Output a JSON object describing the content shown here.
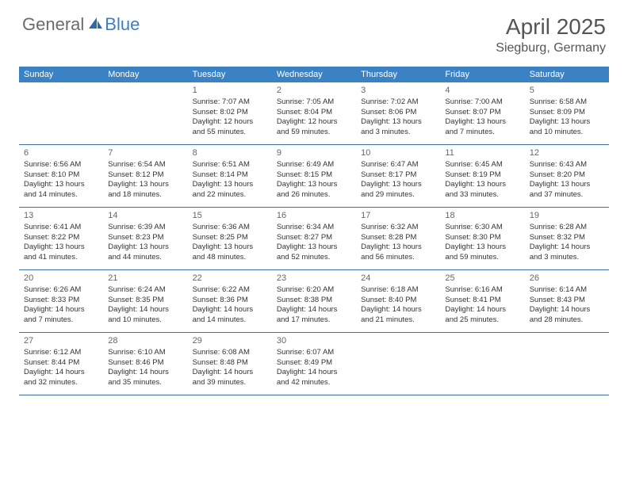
{
  "logo": {
    "general": "General",
    "blue": "Blue"
  },
  "title": "April 2025",
  "location": "Siegburg, Germany",
  "colors": {
    "header_bg": "#3b82c4",
    "header_text": "#ffffff",
    "border": "#3b6fa0",
    "body_text": "#333333",
    "daynum": "#666666",
    "logo_gray": "#6b6b6b",
    "logo_blue": "#3b7fc4",
    "title_color": "#555555",
    "background": "#ffffff"
  },
  "day_names": [
    "Sunday",
    "Monday",
    "Tuesday",
    "Wednesday",
    "Thursday",
    "Friday",
    "Saturday"
  ],
  "weeks": [
    [
      null,
      null,
      {
        "n": "1",
        "sr": "7:07 AM",
        "ss": "8:02 PM",
        "dl": "12 hours and 55 minutes."
      },
      {
        "n": "2",
        "sr": "7:05 AM",
        "ss": "8:04 PM",
        "dl": "12 hours and 59 minutes."
      },
      {
        "n": "3",
        "sr": "7:02 AM",
        "ss": "8:06 PM",
        "dl": "13 hours and 3 minutes."
      },
      {
        "n": "4",
        "sr": "7:00 AM",
        "ss": "8:07 PM",
        "dl": "13 hours and 7 minutes."
      },
      {
        "n": "5",
        "sr": "6:58 AM",
        "ss": "8:09 PM",
        "dl": "13 hours and 10 minutes."
      }
    ],
    [
      {
        "n": "6",
        "sr": "6:56 AM",
        "ss": "8:10 PM",
        "dl": "13 hours and 14 minutes."
      },
      {
        "n": "7",
        "sr": "6:54 AM",
        "ss": "8:12 PM",
        "dl": "13 hours and 18 minutes."
      },
      {
        "n": "8",
        "sr": "6:51 AM",
        "ss": "8:14 PM",
        "dl": "13 hours and 22 minutes."
      },
      {
        "n": "9",
        "sr": "6:49 AM",
        "ss": "8:15 PM",
        "dl": "13 hours and 26 minutes."
      },
      {
        "n": "10",
        "sr": "6:47 AM",
        "ss": "8:17 PM",
        "dl": "13 hours and 29 minutes."
      },
      {
        "n": "11",
        "sr": "6:45 AM",
        "ss": "8:19 PM",
        "dl": "13 hours and 33 minutes."
      },
      {
        "n": "12",
        "sr": "6:43 AM",
        "ss": "8:20 PM",
        "dl": "13 hours and 37 minutes."
      }
    ],
    [
      {
        "n": "13",
        "sr": "6:41 AM",
        "ss": "8:22 PM",
        "dl": "13 hours and 41 minutes."
      },
      {
        "n": "14",
        "sr": "6:39 AM",
        "ss": "8:23 PM",
        "dl": "13 hours and 44 minutes."
      },
      {
        "n": "15",
        "sr": "6:36 AM",
        "ss": "8:25 PM",
        "dl": "13 hours and 48 minutes."
      },
      {
        "n": "16",
        "sr": "6:34 AM",
        "ss": "8:27 PM",
        "dl": "13 hours and 52 minutes."
      },
      {
        "n": "17",
        "sr": "6:32 AM",
        "ss": "8:28 PM",
        "dl": "13 hours and 56 minutes."
      },
      {
        "n": "18",
        "sr": "6:30 AM",
        "ss": "8:30 PM",
        "dl": "13 hours and 59 minutes."
      },
      {
        "n": "19",
        "sr": "6:28 AM",
        "ss": "8:32 PM",
        "dl": "14 hours and 3 minutes."
      }
    ],
    [
      {
        "n": "20",
        "sr": "6:26 AM",
        "ss": "8:33 PM",
        "dl": "14 hours and 7 minutes."
      },
      {
        "n": "21",
        "sr": "6:24 AM",
        "ss": "8:35 PM",
        "dl": "14 hours and 10 minutes."
      },
      {
        "n": "22",
        "sr": "6:22 AM",
        "ss": "8:36 PM",
        "dl": "14 hours and 14 minutes."
      },
      {
        "n": "23",
        "sr": "6:20 AM",
        "ss": "8:38 PM",
        "dl": "14 hours and 17 minutes."
      },
      {
        "n": "24",
        "sr": "6:18 AM",
        "ss": "8:40 PM",
        "dl": "14 hours and 21 minutes."
      },
      {
        "n": "25",
        "sr": "6:16 AM",
        "ss": "8:41 PM",
        "dl": "14 hours and 25 minutes."
      },
      {
        "n": "26",
        "sr": "6:14 AM",
        "ss": "8:43 PM",
        "dl": "14 hours and 28 minutes."
      }
    ],
    [
      {
        "n": "27",
        "sr": "6:12 AM",
        "ss": "8:44 PM",
        "dl": "14 hours and 32 minutes."
      },
      {
        "n": "28",
        "sr": "6:10 AM",
        "ss": "8:46 PM",
        "dl": "14 hours and 35 minutes."
      },
      {
        "n": "29",
        "sr": "6:08 AM",
        "ss": "8:48 PM",
        "dl": "14 hours and 39 minutes."
      },
      {
        "n": "30",
        "sr": "6:07 AM",
        "ss": "8:49 PM",
        "dl": "14 hours and 42 minutes."
      },
      null,
      null,
      null
    ]
  ],
  "labels": {
    "sunrise": "Sunrise:",
    "sunset": "Sunset:",
    "daylight": "Daylight:"
  }
}
